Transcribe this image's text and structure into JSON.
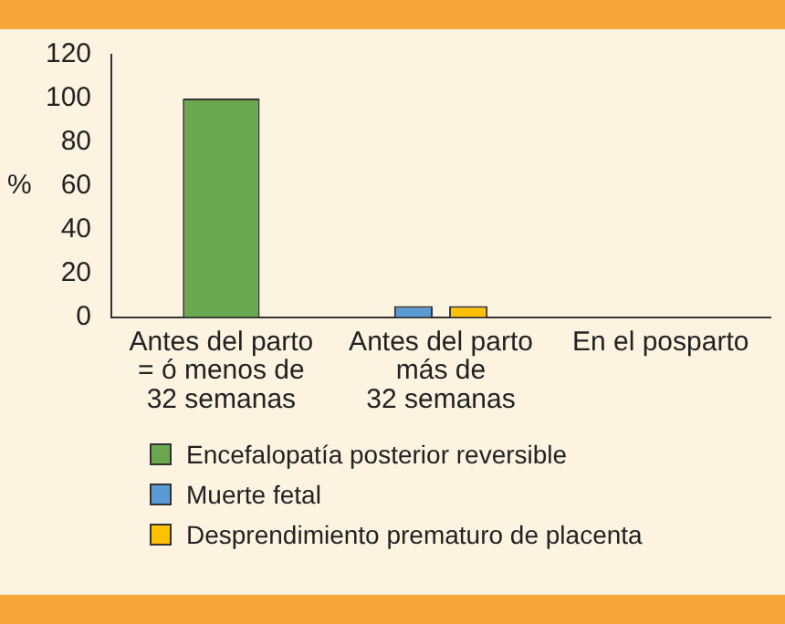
{
  "chart_data": {
    "type": "bar",
    "ylabel": "%",
    "categories": [
      "Antes del parto\n= ó menos de\n32 semanas",
      "Antes del parto\nmás de\n32 semanas",
      "En el posparto"
    ],
    "series": [
      {
        "name": "Encefalopatía posterior reversible",
        "color": "#6aa84f",
        "values": [
          100,
          null,
          null
        ]
      },
      {
        "name": "Muerte fetal",
        "color": "#5b9bd5",
        "values": [
          null,
          5,
          null
        ]
      },
      {
        "name": "Desprendimiento prematuro de placenta",
        "color": "#ffc000",
        "values": [
          null,
          5,
          null
        ]
      }
    ],
    "ylim": [
      0,
      120
    ],
    "yticks": [
      0,
      20,
      40,
      60,
      80,
      100,
      120
    ],
    "grid": false,
    "legend": "bottom"
  }
}
